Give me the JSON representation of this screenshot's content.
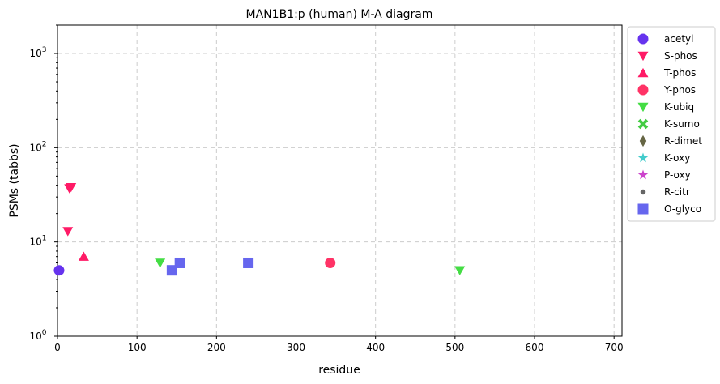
{
  "chart_data": {
    "type": "scatter",
    "title": "MAN1B1:p (human) M-A diagram",
    "xlabel": "residue",
    "ylabel": "PSMs (tabbs)",
    "xlim": [
      0,
      710
    ],
    "ylim": [
      1,
      2000
    ],
    "yscale": "log",
    "grid": true,
    "legend_position": "outside-right",
    "x_ticks": [
      0,
      100,
      200,
      300,
      400,
      500,
      600,
      700
    ],
    "y_ticks": [
      {
        "value": 1,
        "base": "10",
        "exp": "0"
      },
      {
        "value": 10,
        "base": "10",
        "exp": "1"
      },
      {
        "value": 100,
        "base": "10",
        "exp": "2"
      },
      {
        "value": 1000,
        "base": "10",
        "exp": "3"
      }
    ],
    "series": [
      {
        "name": "acetyl",
        "marker": "circle",
        "color": "#6633ee",
        "points": [
          {
            "x": 2,
            "y": 5
          }
        ]
      },
      {
        "name": "S-phos",
        "marker": "triangle-down",
        "color": "#ff1a66",
        "points": [
          {
            "x": 15,
            "y": 37
          },
          {
            "x": 17,
            "y": 38
          },
          {
            "x": 13,
            "y": 13
          }
        ]
      },
      {
        "name": "T-phos",
        "marker": "triangle-up",
        "color": "#ff1a66",
        "points": [
          {
            "x": 33,
            "y": 7
          }
        ]
      },
      {
        "name": "Y-phos",
        "marker": "circle",
        "color": "#ff3366",
        "points": [
          {
            "x": 343,
            "y": 6
          }
        ]
      },
      {
        "name": "K-ubiq",
        "marker": "triangle-down",
        "color": "#44dd44",
        "points": [
          {
            "x": 129,
            "y": 6
          },
          {
            "x": 506,
            "y": 5
          }
        ]
      },
      {
        "name": "K-sumo",
        "marker": "x",
        "color": "#44cc44",
        "points": []
      },
      {
        "name": "R-dimet",
        "marker": "diamond",
        "color": "#666644",
        "points": []
      },
      {
        "name": "K-oxy",
        "marker": "star",
        "color": "#44cccc",
        "points": []
      },
      {
        "name": "P-oxy",
        "marker": "star",
        "color": "#cc44cc",
        "points": []
      },
      {
        "name": "R-citr",
        "marker": "dot",
        "color": "#666666",
        "points": []
      },
      {
        "name": "O-glyco",
        "marker": "square",
        "color": "#6666ee",
        "points": [
          {
            "x": 144,
            "y": 5
          },
          {
            "x": 154,
            "y": 6
          },
          {
            "x": 240,
            "y": 6
          }
        ]
      }
    ]
  }
}
